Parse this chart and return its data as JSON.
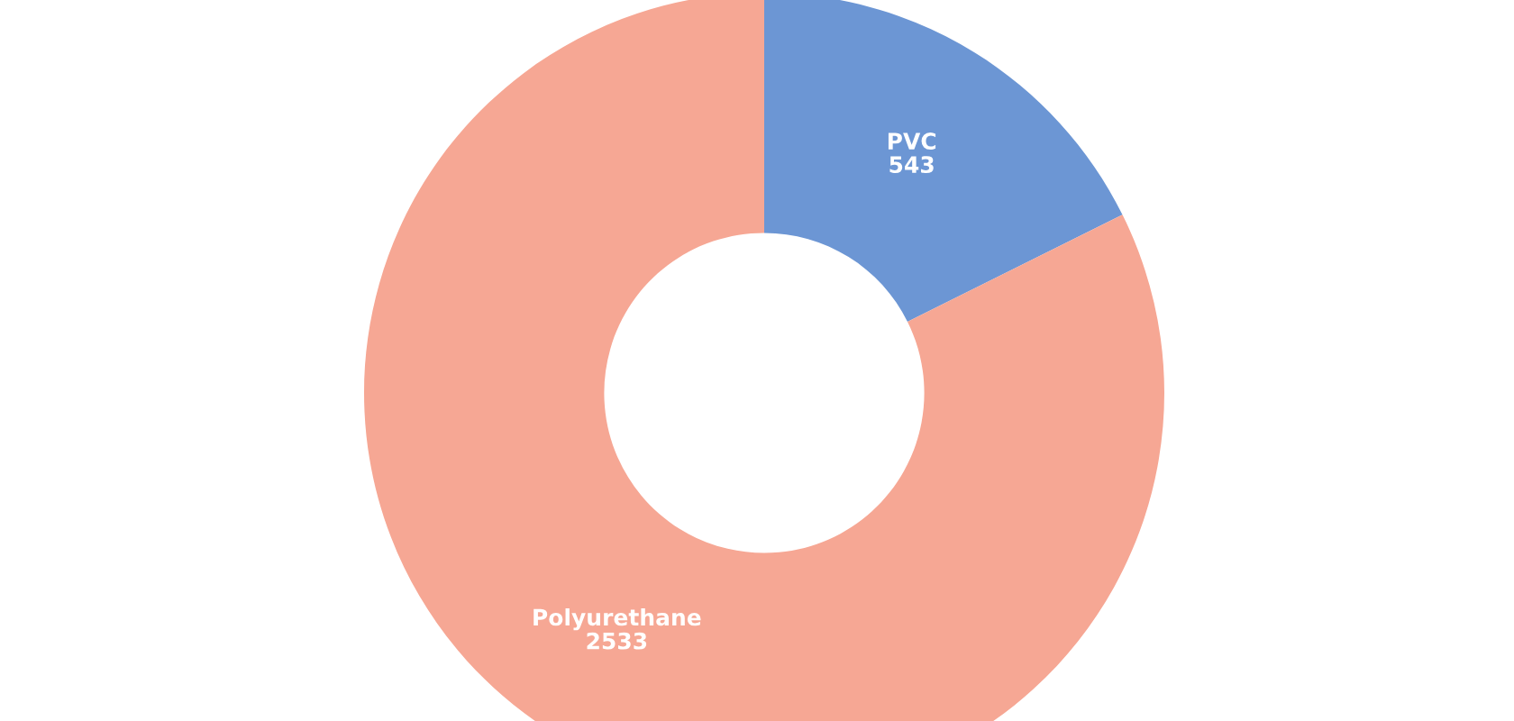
{
  "chart_data": {
    "type": "donut",
    "categories": [
      "PVC",
      "Polyurethane"
    ],
    "values": [
      543,
      2533
    ],
    "colors": [
      "#6c96d4",
      "#f6a794"
    ],
    "data_labels": true
  }
}
